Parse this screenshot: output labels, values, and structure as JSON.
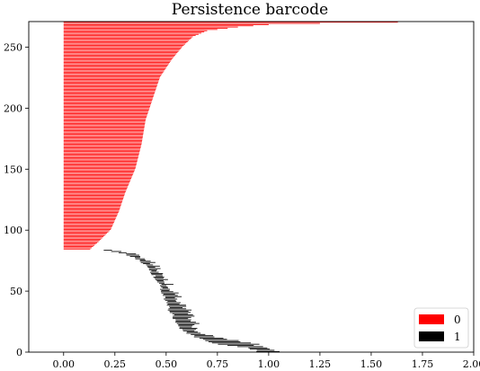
{
  "chart_data": {
    "type": "barcode",
    "title": "Persistence barcode",
    "xlabel": "",
    "ylabel": "",
    "xlim": [
      -0.17,
      2.0
    ],
    "ylim": [
      0,
      271
    ],
    "xticks": [
      "0.00",
      "0.25",
      "0.50",
      "0.75",
      "1.00",
      "1.25",
      "1.50",
      "1.75",
      "2.00"
    ],
    "xtick_values": [
      0,
      0.25,
      0.5,
      0.75,
      1.0,
      1.25,
      1.5,
      1.75,
      2.0
    ],
    "yticks": [
      "0",
      "50",
      "100",
      "150",
      "200",
      "250"
    ],
    "ytick_values": [
      0,
      50,
      100,
      150,
      200,
      250
    ],
    "grid": false,
    "legend_position": "bottom-right",
    "series": [
      {
        "name": "0",
        "color": "#ff0000",
        "dimension": 0,
        "count": 187,
        "start_index": 84,
        "birth": 0.0,
        "death_profile": {
          "index": [
            84,
            90,
            100,
            115,
            130,
            150,
            170,
            190,
            210,
            225,
            240,
            250,
            258,
            263,
            266,
            268,
            269,
            270,
            271
          ],
          "death": [
            0.13,
            0.17,
            0.23,
            0.27,
            0.3,
            0.35,
            0.38,
            0.4,
            0.44,
            0.47,
            0.53,
            0.58,
            0.63,
            0.7,
            0.85,
            1.0,
            1.25,
            1.63,
            1.63
          ]
        }
      },
      {
        "name": "1",
        "color": "#000000",
        "dimension": 1,
        "count": 84,
        "start_index": 0,
        "birth_profile": {
          "index": [
            0,
            3,
            6,
            10,
            15,
            20,
            25,
            30,
            35,
            40,
            45,
            50,
            55,
            60,
            65,
            70,
            75,
            78,
            80,
            82,
            83
          ],
          "birth": [
            0.95,
            0.9,
            0.75,
            0.67,
            0.6,
            0.56,
            0.55,
            0.53,
            0.51,
            0.5,
            0.49,
            0.48,
            0.47,
            0.45,
            0.43,
            0.41,
            0.37,
            0.33,
            0.3,
            0.24,
            0.2
          ]
        },
        "death_profile": {
          "index": [
            0,
            3,
            6,
            10,
            15,
            20,
            25,
            30,
            35,
            40,
            45,
            50,
            55,
            60,
            65,
            70,
            75,
            78,
            80,
            82,
            83
          ],
          "death": [
            1.07,
            0.97,
            0.93,
            0.8,
            0.66,
            0.65,
            0.63,
            0.61,
            0.6,
            0.57,
            0.56,
            0.53,
            0.52,
            0.5,
            0.48,
            0.46,
            0.42,
            0.38,
            0.36,
            0.26,
            0.22
          ]
        }
      }
    ]
  }
}
